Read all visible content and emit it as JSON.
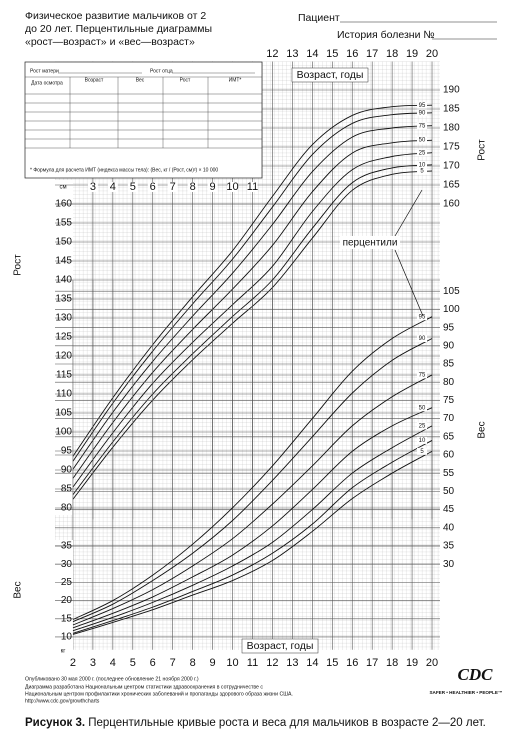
{
  "header": {
    "title": [
      "Физическое развитие мальчиков от 2",
      "до 20 лет. Перцентильные диаграммы",
      "«рост—возраст» и «вес—возраст»"
    ],
    "patient": "Пациент",
    "record": "История болезни №"
  },
  "form": {
    "mother": "Рост матери",
    "father": "Рост отца",
    "columns": [
      "Дата осмотра",
      "Возраст",
      "Вес",
      "Рост",
      "ИМТ*"
    ],
    "footnote": "* Формула для расчета ИМТ (индекса массы тела): (Вес, кг / (Рост, см)²) × 10 000"
  },
  "chart_data": [
    {
      "type": "line",
      "xlabel": "Возраст, годы",
      "ylabel": "Рост",
      "y2label": "Рост",
      "yunit": "см",
      "x": [
        2,
        4,
        6,
        8,
        10,
        12,
        14,
        16,
        18,
        20
      ],
      "xlim": [
        1.1,
        20.4
      ],
      "xticks": [
        3,
        4,
        5,
        6,
        7,
        8,
        9,
        10,
        11,
        12,
        13,
        14,
        15,
        16,
        17,
        18,
        19,
        20
      ],
      "ylim": [
        77,
        197.5
      ],
      "yticks": [
        80,
        85,
        90,
        95,
        100,
        105,
        110,
        115,
        120,
        125,
        130,
        135,
        140,
        145,
        150,
        155,
        160
      ],
      "y2lim": [
        77,
        197.5
      ],
      "y2ticks": [
        160,
        165,
        170,
        175,
        180,
        185,
        190
      ],
      "series": [
        {
          "name": "95",
          "color": "#111",
          "values": [
            93.6,
            109.0,
            123.0,
            135.6,
            147.7,
            162.0,
            175.6,
            183.3,
            185.6,
            186.0
          ]
        },
        {
          "name": "90",
          "color": "#111",
          "values": [
            92.3,
            107.6,
            121.3,
            133.7,
            145.5,
            159.2,
            173.0,
            181.2,
            183.5,
            184.0
          ]
        },
        {
          "name": "75",
          "color": "#111",
          "values": [
            90.2,
            105.2,
            118.6,
            130.5,
            141.8,
            154.6,
            168.5,
            177.6,
            180.0,
            180.6
          ]
        },
        {
          "name": "50",
          "color": "#111",
          "values": [
            87.8,
            102.5,
            115.7,
            127.0,
            137.6,
            149.1,
            163.2,
            173.4,
            176.1,
            176.8
          ]
        },
        {
          "name": "25",
          "color": "#111",
          "values": [
            85.5,
            99.8,
            112.8,
            123.6,
            133.5,
            143.6,
            158.0,
            169.0,
            172.5,
            173.5
          ]
        },
        {
          "name": "10",
          "color": "#111",
          "values": [
            83.5,
            97.4,
            110.0,
            120.6,
            130.4,
            140.0,
            153.6,
            165.6,
            169.5,
            170.3
          ]
        },
        {
          "name": "5",
          "color": "#111",
          "values": [
            82.3,
            96.0,
            108.4,
            119.0,
            128.6,
            138.0,
            151.0,
            163.6,
            167.8,
            168.7
          ]
        }
      ]
    },
    {
      "type": "line",
      "xlabel": "Возраст, годы",
      "ylabel": "Вес",
      "y2label": "Вес",
      "yunit": "кг",
      "x": [
        2,
        4,
        6,
        8,
        10,
        12,
        14,
        16,
        18,
        20
      ],
      "xlim": [
        1.1,
        20.4
      ],
      "xticks": [
        2,
        3,
        4,
        5,
        6,
        7,
        8,
        9,
        10,
        11,
        12,
        13,
        14,
        15,
        16,
        17,
        18,
        19,
        20
      ],
      "ylim": [
        6.5,
        108
      ],
      "yticks": [
        10,
        15,
        20,
        25,
        30,
        35
      ],
      "y2lim": [
        6.5,
        108
      ],
      "y2ticks": [
        30,
        35,
        40,
        45,
        50,
        55,
        60,
        65,
        70,
        75,
        80,
        85,
        90,
        95,
        100,
        105
      ],
      "series": [
        {
          "name": "95",
          "color": "#111",
          "values": [
            14.8,
            20.0,
            27.0,
            35.5,
            45.5,
            57.0,
            70.0,
            83.0,
            92.0,
            98.0
          ]
        },
        {
          "name": "90",
          "color": "#111",
          "values": [
            14.2,
            19.0,
            25.5,
            33.0,
            42.0,
            53.0,
            65.0,
            77.0,
            86.0,
            92.0
          ]
        },
        {
          "name": "75",
          "color": "#111",
          "values": [
            13.3,
            17.8,
            23.0,
            29.5,
            37.0,
            46.5,
            57.0,
            68.0,
            76.0,
            82.0
          ]
        },
        {
          "name": "50",
          "color": "#111",
          "values": [
            12.5,
            16.5,
            21.0,
            26.5,
            32.5,
            40.5,
            50.5,
            61.0,
            68.0,
            73.0
          ]
        },
        {
          "name": "25",
          "color": "#111",
          "values": [
            11.7,
            15.4,
            19.5,
            24.2,
            29.5,
            36.0,
            45.0,
            55.0,
            62.0,
            68.0
          ]
        },
        {
          "name": "10",
          "color": "#111",
          "values": [
            11.0,
            14.5,
            18.2,
            22.5,
            27.0,
            33.0,
            41.0,
            51.0,
            58.0,
            64.0
          ]
        },
        {
          "name": "5",
          "color": "#111",
          "values": [
            10.7,
            14.0,
            17.5,
            21.5,
            25.5,
            31.0,
            39.0,
            48.0,
            55.0,
            61.0
          ]
        }
      ]
    }
  ],
  "annotation": "перцентили",
  "footer": {
    "lines": [
      "Опубликовано 30 мая 2000 г. (последнее обновление 21 ноября 2000 г.)",
      "Диаграмма разработана Национальным центром статистики здравоохранения в сотрудничестве с",
      "Национальным центром профилактики хронических заболеваний и пропаганды здорового образа жизни США.",
      "http://www.cdc.gov/growthcharts"
    ],
    "logo": "CDC",
    "slogan": "SAFER • HEALTHIER • PEOPLE™"
  },
  "caption": {
    "label": "Рисунок 3.",
    "text": " Перцентильные кривые роста и веса для мальчиков в возрасте 2—20 лет."
  }
}
